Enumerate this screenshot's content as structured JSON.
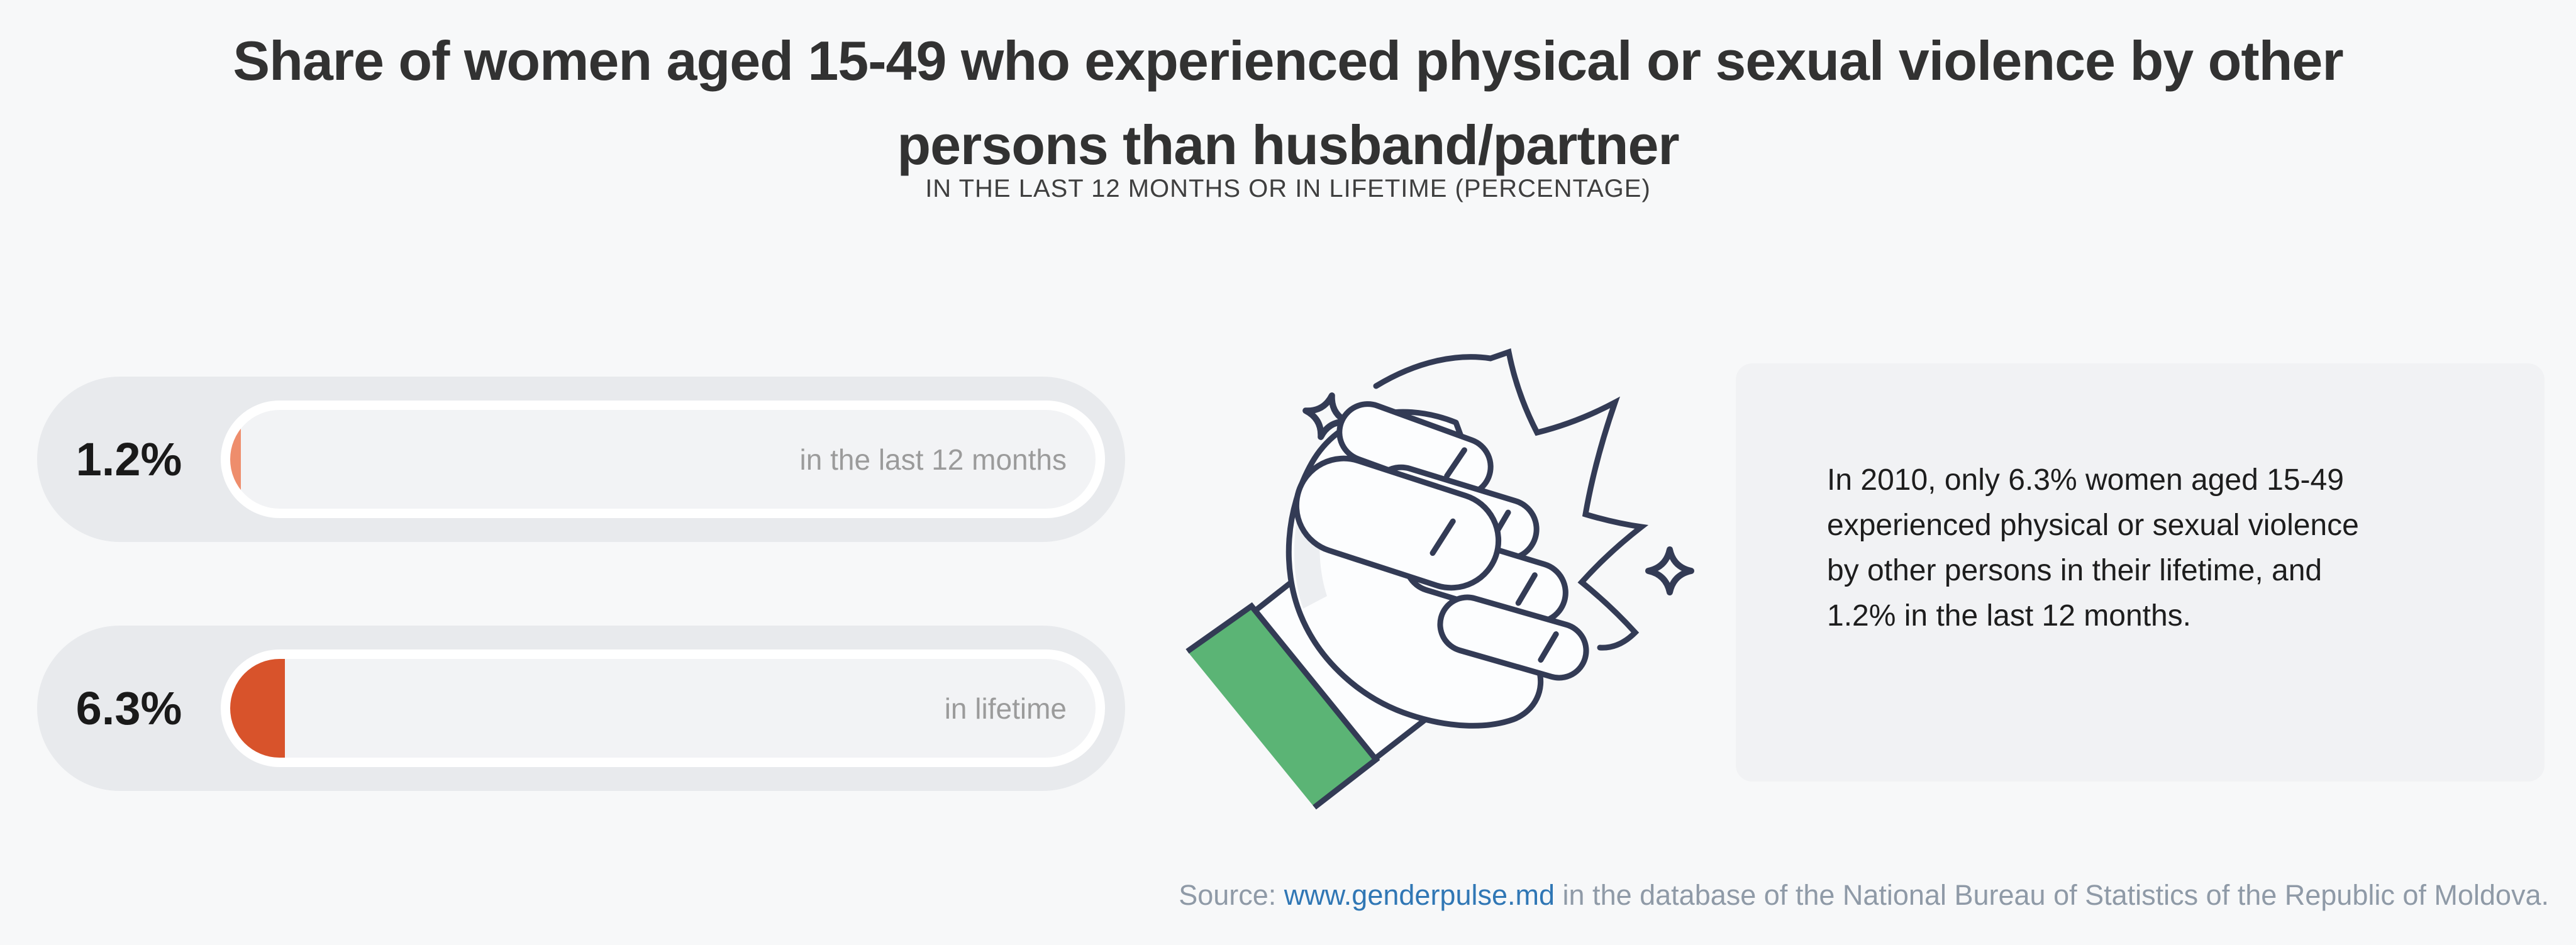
{
  "page": {
    "background_color": "#F7F8F9"
  },
  "header": {
    "title": "Share of women aged 15-49 who experienced physical or sexual violence by other persons than husband/partner",
    "title_line1": "Share of women aged 15-49 who experienced physical or sexual violence by other",
    "title_line2": "persons than husband/partner",
    "subtitle": "IN THE LAST 12 MONTHS OR IN LIFETIME (PERCENTAGE)"
  },
  "chart_data": {
    "type": "bar",
    "orientation": "horizontal",
    "title": "Share of women aged 15-49 who experienced physical or sexual violence by other persons than husband/partner",
    "subtitle": "IN THE LAST 12 MONTHS OR IN LIFETIME (PERCENTAGE)",
    "unit": "percent",
    "categories": [
      "in the last 12 months",
      "in lifetime"
    ],
    "values": [
      1.2,
      6.3
    ],
    "value_labels": [
      "1.2%",
      "6.3%"
    ],
    "xlim": [
      0,
      100
    ],
    "grid": false,
    "legend": false,
    "bar_fill_colors": [
      "#EE8D6C",
      "#D8532B"
    ],
    "track_color": "#F2F3F5",
    "pill_color": "#E8EAED"
  },
  "bars": [
    {
      "value": 1.2,
      "value_label": "1.2%",
      "category": "in the last 12 months",
      "fill_color": "#EE8D6C"
    },
    {
      "value": 6.3,
      "value_label": "6.3%",
      "category": "in lifetime",
      "fill_color": "#D8532B"
    }
  ],
  "annotation": {
    "text": "In 2010, only 6.3% women aged 15-49 experienced physical or sexual violence by other persons in their lifetime, and 1.2% in the last 12 months.",
    "lines": [
      "In 2010, only 6.3% women aged 15-49",
      "experienced physical or sexual violence",
      "by other persons in their lifetime, and",
      "1.2% in the last 12 months."
    ]
  },
  "illustration": {
    "name": "fist-punch-illustration",
    "outline_color": "#333B55",
    "hand_color": "#FCFDFE",
    "sleeve_color": "#5BB475",
    "elements": [
      "fist",
      "impact-burst",
      "sparkle",
      "sparkle",
      "green-sleeve"
    ]
  },
  "source": {
    "prefix": "Source: ",
    "link_text": "www.genderpulse.md",
    "suffix": " in the database of the National Bureau of Statistics of the Republic of Moldova.",
    "link_color": "#3077B5"
  }
}
